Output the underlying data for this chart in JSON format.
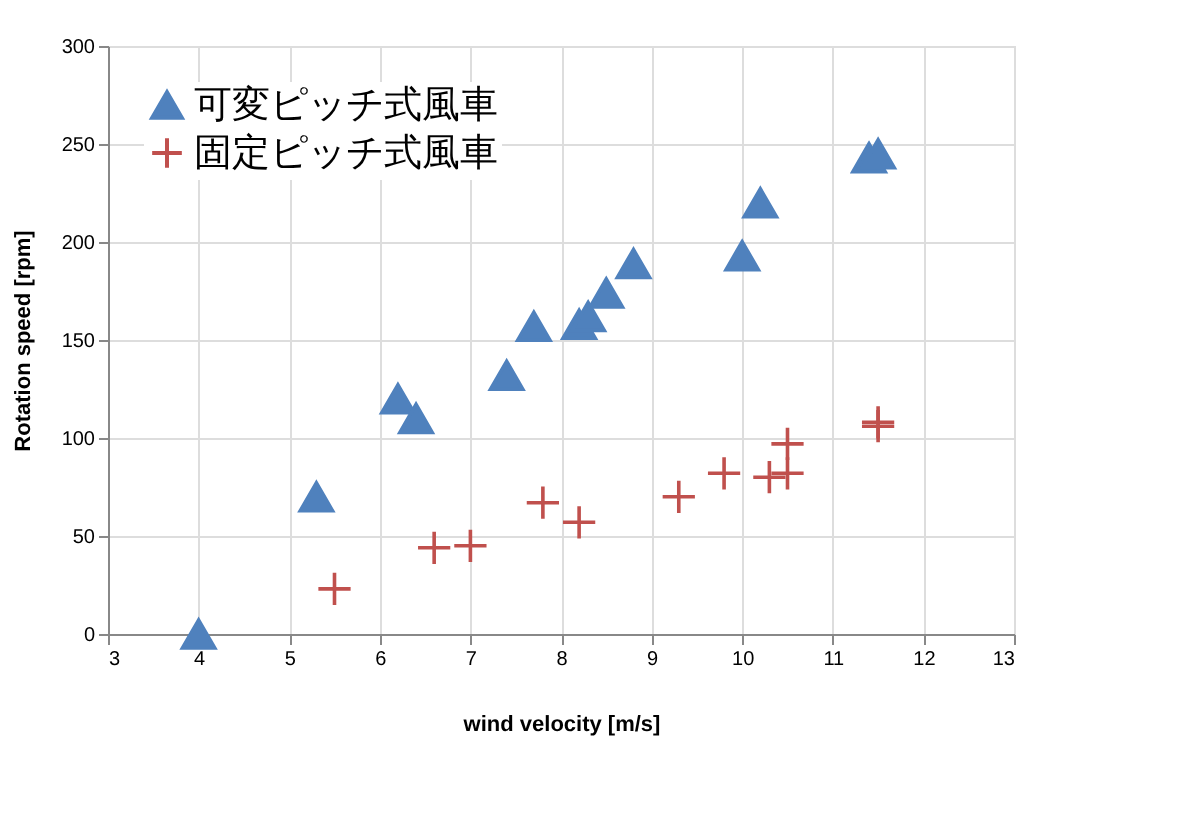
{
  "chart_data": {
    "type": "scatter",
    "xlabel": "wind velocity [m/s]",
    "ylabel": "Rotation speed [rpm]",
    "xlim": [
      3,
      13
    ],
    "xticks": [
      3,
      4,
      5,
      6,
      7,
      8,
      9,
      10,
      11,
      12,
      13
    ],
    "ylim": [
      0,
      300
    ],
    "yticks": [
      0,
      50,
      100,
      150,
      200,
      250,
      300
    ],
    "grid": true,
    "legend": "top left",
    "series": [
      {
        "name": "可変ピッチ式風車",
        "color": "#4f81bd",
        "marker": "triangle",
        "x": [
          4,
          5.3,
          6.2,
          6.4,
          7.4,
          7.7,
          8.2,
          8.3,
          8.5,
          8.8,
          10,
          10.2,
          11.4,
          11.5
        ],
        "values": [
          0,
          70,
          120,
          110,
          132,
          157,
          158,
          162,
          174,
          189,
          193,
          220,
          243,
          245
        ]
      },
      {
        "name": "固定ピッチ式風車",
        "color": "#c0504d",
        "marker": "cross",
        "x": [
          5.5,
          6.6,
          7,
          7.8,
          8.2,
          9.3,
          9.8,
          10.3,
          10.5,
          10.5,
          11.5,
          11.5
        ],
        "values": [
          23,
          44,
          45,
          67,
          57,
          70,
          82,
          80,
          82,
          97,
          106,
          108
        ]
      }
    ]
  }
}
